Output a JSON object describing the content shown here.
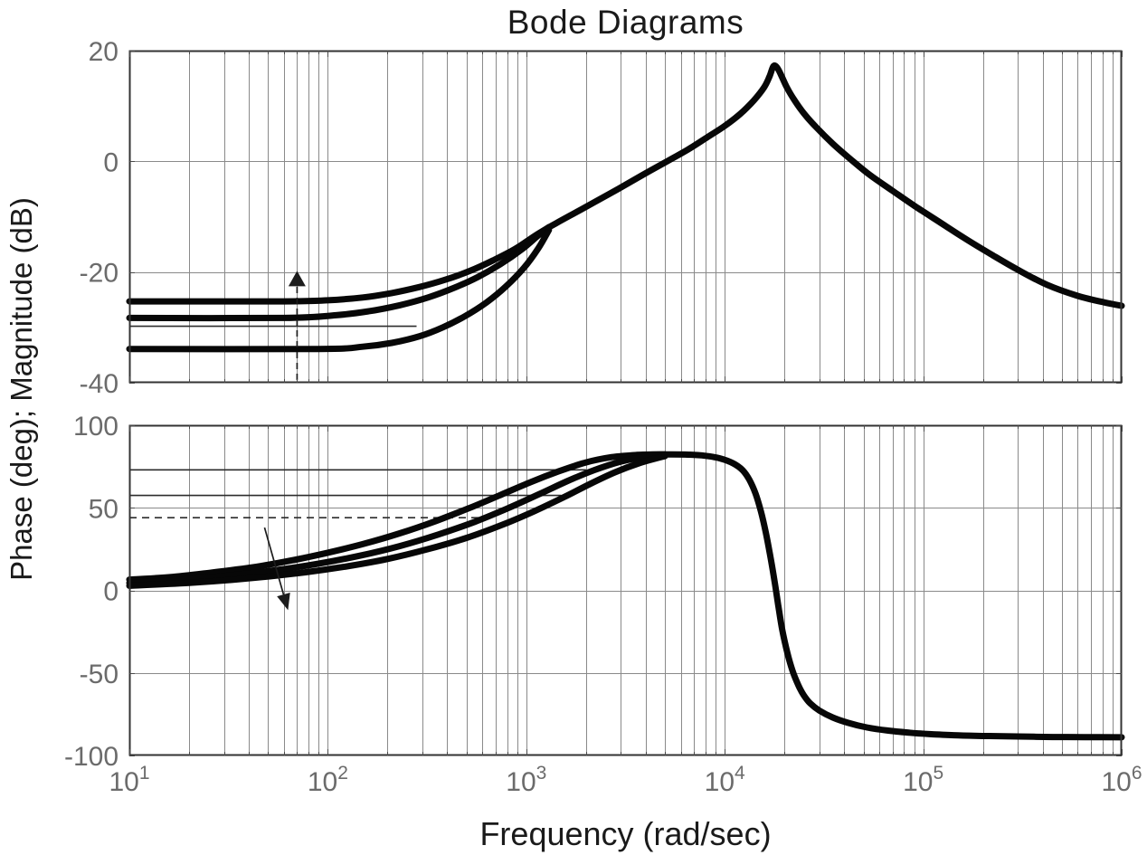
{
  "figure": {
    "title": "Bode Diagrams",
    "xlabel": "Frequency (rad/sec)",
    "ylabel": "Phase (deg); Magnitude (dB)",
    "background_color": "#ffffff",
    "curve_color": "#070707",
    "grid_color": "#8a8a8a",
    "frame_color": "#333333",
    "tick_label_color": "#6b6b6b",
    "annotation_color": "#1c1c1c"
  },
  "chart_data": [
    {
      "type": "line",
      "name": "magnitude",
      "axis_label": "Magnitude (dB)",
      "x_scale": "log",
      "xlim": [
        10,
        1000000
      ],
      "x_ticks": [
        {
          "f": 10,
          "base": "10",
          "exp": "1"
        },
        {
          "f": 100,
          "base": "10",
          "exp": "2"
        },
        {
          "f": 1000,
          "base": "10",
          "exp": "3"
        },
        {
          "f": 10000,
          "base": "10",
          "exp": "4"
        },
        {
          "f": 100000,
          "base": "10",
          "exp": "5"
        },
        {
          "f": 1000000,
          "base": "10",
          "exp": "6"
        }
      ],
      "show_x_tick_labels": false,
      "ylim": [
        -40,
        20
      ],
      "yticks": [
        20,
        0,
        -20,
        -40
      ],
      "grid": true,
      "series": [
        {
          "name": "gain-curve-high",
          "points": [
            [
              10,
              -25.3
            ],
            [
              60,
              -25.3
            ],
            [
              100,
              -25.1
            ],
            [
              150,
              -24.6
            ],
            [
              210,
              -23.8
            ],
            [
              290,
              -22.7
            ],
            [
              390,
              -21.4
            ],
            [
              520,
              -19.8
            ],
            [
              680,
              -17.9
            ],
            [
              880,
              -15.8
            ],
            [
              1100,
              -13.5
            ],
            [
              1300,
              -11.9
            ]
          ]
        },
        {
          "name": "gain-curve-mid",
          "points": [
            [
              10,
              -28.3
            ],
            [
              60,
              -28.3
            ],
            [
              110,
              -27.8
            ],
            [
              160,
              -27.1
            ],
            [
              230,
              -26.0
            ],
            [
              320,
              -24.6
            ],
            [
              430,
              -22.9
            ],
            [
              570,
              -20.9
            ],
            [
              740,
              -18.6
            ],
            [
              950,
              -15.9
            ],
            [
              1150,
              -13.4
            ],
            [
              1300,
              -12.0
            ]
          ]
        },
        {
          "name": "gain-curve-low",
          "points": [
            [
              10,
              -33.9
            ],
            [
              90,
              -33.9
            ],
            [
              150,
              -33.5
            ],
            [
              210,
              -32.8
            ],
            [
              290,
              -31.6
            ],
            [
              380,
              -30.0
            ],
            [
              490,
              -28.0
            ],
            [
              630,
              -25.5
            ],
            [
              790,
              -22.6
            ],
            [
              970,
              -19.3
            ],
            [
              1150,
              -15.7
            ],
            [
              1300,
              -12.4
            ]
          ]
        },
        {
          "name": "gain-curve-merged",
          "points": [
            [
              1300,
              -11.9
            ],
            [
              1700,
              -9.6
            ],
            [
              2200,
              -7.4
            ],
            [
              2900,
              -5.0
            ],
            [
              3800,
              -2.6
            ],
            [
              5000,
              -0.2
            ],
            [
              6500,
              2.1
            ],
            [
              8200,
              4.4
            ],
            [
              10000,
              6.4
            ],
            [
              12000,
              8.6
            ],
            [
              14000,
              11.0
            ],
            [
              15800,
              13.4
            ],
            [
              16800,
              15.3
            ],
            [
              17600,
              17.2
            ],
            [
              18400,
              16.9
            ],
            [
              19400,
              15.3
            ],
            [
              20600,
              13.3
            ],
            [
              22500,
              11.0
            ],
            [
              25000,
              8.7
            ],
            [
              29000,
              6.1
            ],
            [
              35000,
              3.2
            ],
            [
              43000,
              0.4
            ],
            [
              54000,
              -2.5
            ],
            [
              70000,
              -5.3
            ],
            [
              90000,
              -8.0
            ],
            [
              120000,
              -10.9
            ],
            [
              160000,
              -13.8
            ],
            [
              220000,
              -16.8
            ],
            [
              300000,
              -19.6
            ],
            [
              420000,
              -22.3
            ],
            [
              600000,
              -24.3
            ],
            [
              820000,
              -25.5
            ],
            [
              1000000,
              -26.1
            ]
          ]
        }
      ],
      "ref_lines": [
        {
          "y": -29.8,
          "f": [
            10,
            280
          ],
          "dashed": false
        }
      ],
      "annotations": [
        {
          "kind": "arrow",
          "from": [
            70,
            -39.5
          ],
          "to": [
            70,
            -19.8
          ],
          "dashed": true,
          "head_l": 17,
          "head_w": 19
        }
      ]
    },
    {
      "type": "line",
      "name": "phase",
      "axis_label": "Phase (deg)",
      "x_scale": "log",
      "xlim": [
        10,
        1000000
      ],
      "x_ticks": [
        {
          "f": 10,
          "base": "10",
          "exp": "1"
        },
        {
          "f": 100,
          "base": "10",
          "exp": "2"
        },
        {
          "f": 1000,
          "base": "10",
          "exp": "3"
        },
        {
          "f": 10000,
          "base": "10",
          "exp": "4"
        },
        {
          "f": 100000,
          "base": "10",
          "exp": "5"
        },
        {
          "f": 1000000,
          "base": "10",
          "exp": "6"
        }
      ],
      "show_x_tick_labels": true,
      "ylim": [
        -100,
        100
      ],
      "yticks": [
        100,
        50,
        0,
        -50,
        -100
      ],
      "grid": true,
      "series": [
        {
          "name": "phase-curve-fast",
          "points": [
            [
              10,
              6.5
            ],
            [
              16,
              8.0
            ],
            [
              26,
              10.8
            ],
            [
              42,
              14.0
            ],
            [
              65,
              18.0
            ],
            [
              100,
              22.8
            ],
            [
              150,
              28.0
            ],
            [
              230,
              34.5
            ],
            [
              350,
              42.0
            ],
            [
              520,
              50.0
            ],
            [
              750,
              58.0
            ],
            [
              1050,
              65.5
            ],
            [
              1450,
              72.0
            ],
            [
              2000,
              77.5
            ],
            [
              2700,
              80.7
            ],
            [
              3600,
              82.0
            ],
            [
              5000,
              82.4
            ]
          ]
        },
        {
          "name": "phase-curve-mid",
          "points": [
            [
              10,
              4.5
            ],
            [
              18,
              6.3
            ],
            [
              32,
              9.0
            ],
            [
              55,
              12.3
            ],
            [
              90,
              16.2
            ],
            [
              145,
              21.0
            ],
            [
              230,
              26.8
            ],
            [
              360,
              33.8
            ],
            [
              550,
              41.5
            ],
            [
              800,
              49.5
            ],
            [
              1150,
              58.0
            ],
            [
              1600,
              66.0
            ],
            [
              2200,
              72.8
            ],
            [
              3000,
              78.0
            ],
            [
              4000,
              80.9
            ],
            [
              5000,
              82.2
            ]
          ]
        },
        {
          "name": "phase-curve-slow",
          "points": [
            [
              10,
              2.8
            ],
            [
              20,
              4.5
            ],
            [
              38,
              7.0
            ],
            [
              70,
              10.3
            ],
            [
              120,
              14.2
            ],
            [
              200,
              19.0
            ],
            [
              320,
              25.0
            ],
            [
              500,
              31.8
            ],
            [
              750,
              39.5
            ],
            [
              1100,
              48.0
            ],
            [
              1550,
              56.5
            ],
            [
              2100,
              64.5
            ],
            [
              2800,
              71.5
            ],
            [
              3700,
              77.0
            ],
            [
              4600,
              80.2
            ],
            [
              5000,
              81.3
            ]
          ]
        },
        {
          "name": "phase-curve-merged",
          "points": [
            [
              5000,
              82.3
            ],
            [
              6500,
              82.2
            ],
            [
              8000,
              81.5
            ],
            [
              9500,
              79.9
            ],
            [
              11000,
              77.0
            ],
            [
              12300,
              72.8
            ],
            [
              13300,
              67.0
            ],
            [
              14300,
              58.5
            ],
            [
              15200,
              48.0
            ],
            [
              16100,
              35.0
            ],
            [
              17000,
              20.0
            ],
            [
              17800,
              6.0
            ],
            [
              18600,
              -9.0
            ],
            [
              19500,
              -24.0
            ],
            [
              20700,
              -38.0
            ],
            [
              22000,
              -49.0
            ],
            [
              23500,
              -57.5
            ],
            [
              25000,
              -63.5
            ],
            [
              27000,
              -68.5
            ],
            [
              30000,
              -72.8
            ],
            [
              35000,
              -77.0
            ],
            [
              42000,
              -80.3
            ],
            [
              52000,
              -83.0
            ],
            [
              66000,
              -84.9
            ],
            [
              85000,
              -86.2
            ],
            [
              110000,
              -87.1
            ],
            [
              150000,
              -87.8
            ],
            [
              210000,
              -88.2
            ],
            [
              300000,
              -88.5
            ],
            [
              450000,
              -88.8
            ],
            [
              650000,
              -88.9
            ],
            [
              1000000,
              -89.0
            ]
          ]
        }
      ],
      "ref_lines": [
        {
          "y": 73.0,
          "f": [
            10,
            2000
          ],
          "dashed": false
        },
        {
          "y": 57.5,
          "f": [
            10,
            1500
          ],
          "dashed": false
        },
        {
          "y": 44.0,
          "f": [
            10,
            700
          ],
          "dashed": true
        }
      ],
      "annotations": [
        {
          "kind": "arrow",
          "from": [
            48,
            38
          ],
          "to": [
            63,
            -12
          ],
          "dashed": false,
          "head_l": 18,
          "head_w": 15
        }
      ]
    }
  ]
}
